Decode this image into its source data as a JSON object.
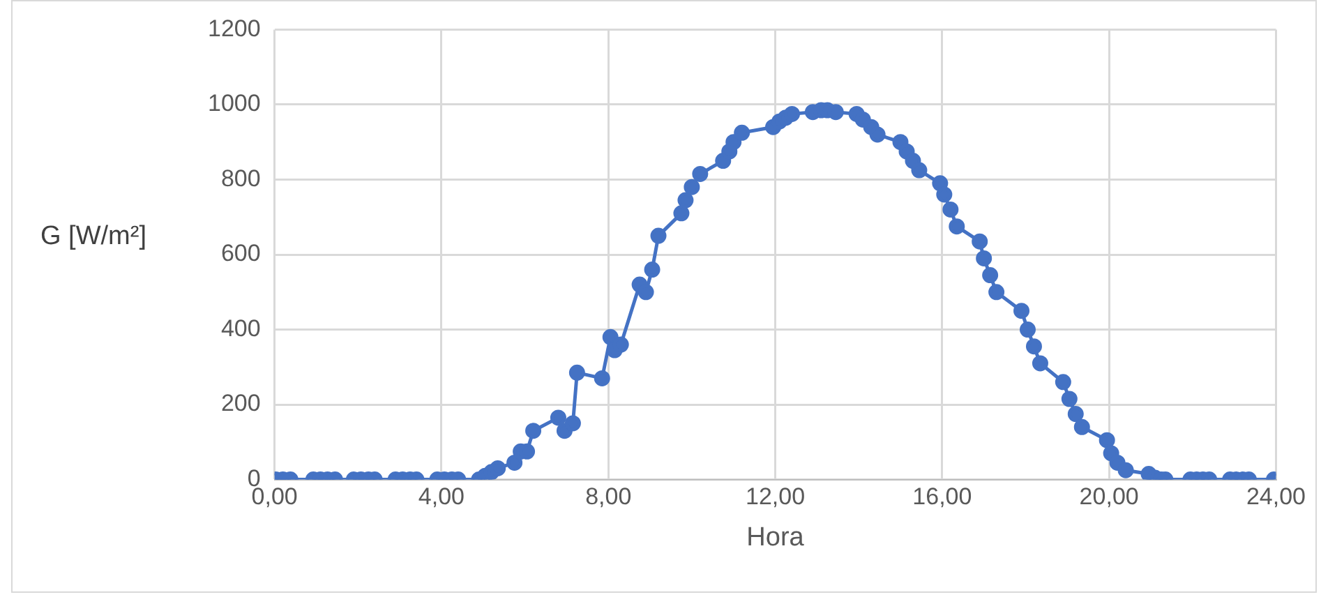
{
  "chart_data": {
    "type": "line",
    "xlabel": "Hora",
    "ylabel": "G [W/m²]",
    "x": [
      0.03,
      0.2,
      0.38,
      0.93,
      1.1,
      1.27,
      1.45,
      1.9,
      2.07,
      2.25,
      2.4,
      2.9,
      3.07,
      3.25,
      3.4,
      3.9,
      4.07,
      4.25,
      4.4,
      4.9,
      5.05,
      5.2,
      5.35,
      5.75,
      5.9,
      6.05,
      6.2,
      6.8,
      6.95,
      7.15,
      7.25,
      7.85,
      8.05,
      8.15,
      8.3,
      8.75,
      8.9,
      9.05,
      9.2,
      9.75,
      9.85,
      10.0,
      10.2,
      10.75,
      10.9,
      11.0,
      11.2,
      11.95,
      12.1,
      12.25,
      12.4,
      12.9,
      13.1,
      13.25,
      13.45,
      13.95,
      14.1,
      14.3,
      14.45,
      15.0,
      15.15,
      15.3,
      15.45,
      15.95,
      16.05,
      16.2,
      16.35,
      16.9,
      17.0,
      17.15,
      17.3,
      17.9,
      18.05,
      18.2,
      18.35,
      18.9,
      19.05,
      19.2,
      19.35,
      19.95,
      20.05,
      20.2,
      20.4,
      20.95,
      21.1,
      21.25,
      21.35,
      21.95,
      22.1,
      22.25,
      22.4,
      22.9,
      23.05,
      23.2,
      23.35,
      23.95
    ],
    "series": [
      {
        "color": "#4472c4",
        "values": [
          0,
          0,
          0,
          0,
          0,
          0,
          0,
          0,
          0,
          0,
          0,
          0,
          0,
          0,
          0,
          0,
          0,
          0,
          0,
          0,
          10,
          20,
          30,
          45,
          75,
          75,
          130,
          165,
          130,
          150,
          285,
          270,
          380,
          345,
          360,
          520,
          500,
          560,
          650,
          710,
          745,
          780,
          815,
          850,
          875,
          900,
          925,
          940,
          955,
          965,
          975,
          980,
          985,
          985,
          980,
          975,
          960,
          940,
          920,
          900,
          875,
          850,
          825,
          790,
          760,
          720,
          675,
          635,
          590,
          545,
          500,
          450,
          400,
          355,
          310,
          260,
          215,
          175,
          140,
          105,
          70,
          45,
          25,
          15,
          5,
          0,
          0,
          0,
          0,
          0,
          0,
          0,
          0,
          0,
          0,
          0
        ]
      }
    ],
    "xlim": [
      0,
      24
    ],
    "xticks": [
      {
        "value": 0,
        "label": "0,00"
      },
      {
        "value": 4,
        "label": "4,00"
      },
      {
        "value": 8,
        "label": "8,00"
      },
      {
        "value": 12,
        "label": "12,00"
      },
      {
        "value": 16,
        "label": "16,00"
      },
      {
        "value": 20,
        "label": "20,00"
      },
      {
        "value": 24,
        "label": "24,00"
      }
    ],
    "ylim": [
      0,
      1200
    ],
    "yticks": [
      0,
      200,
      400,
      600,
      800,
      1000,
      1200
    ],
    "grid": true,
    "legend": false,
    "marker": "circle",
    "line_style": "solid"
  }
}
